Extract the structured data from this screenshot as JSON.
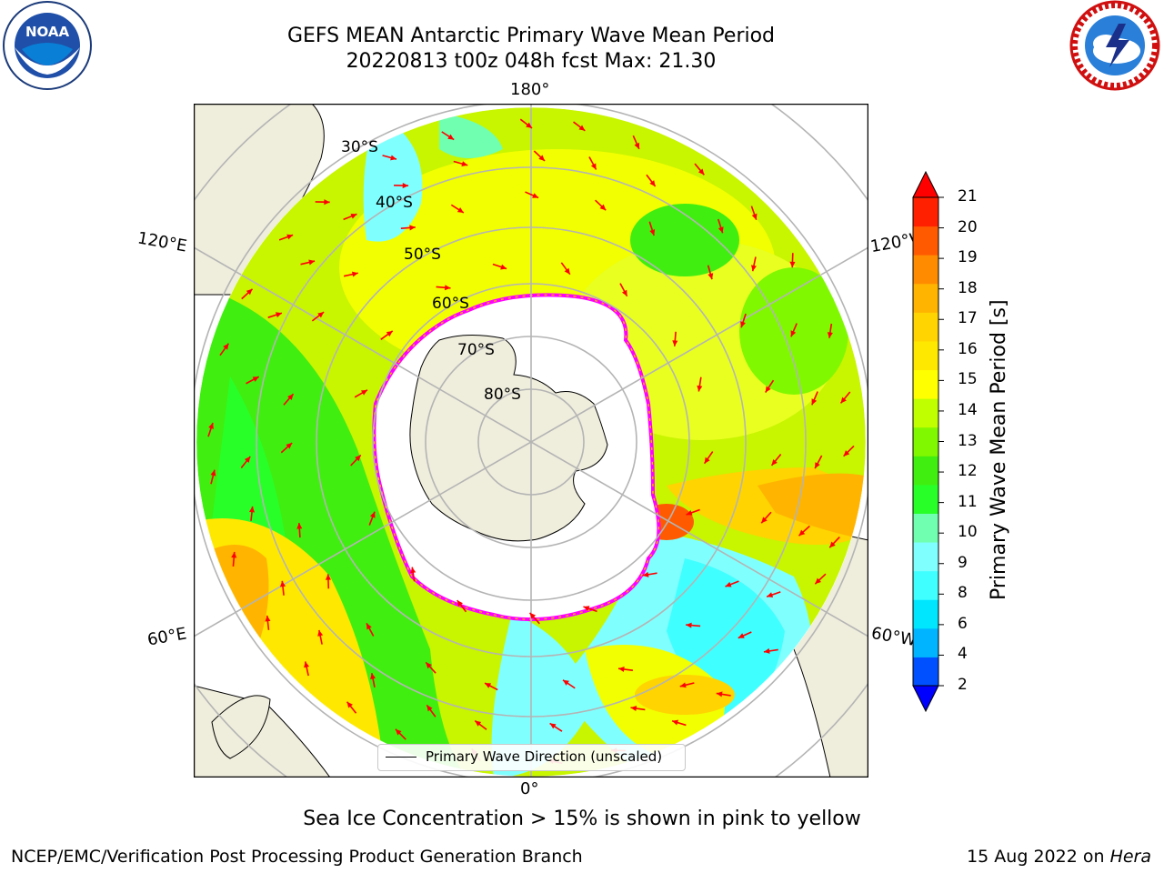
{
  "title": {
    "line1": "GEFS MEAN Antarctic Primary Wave Mean Period",
    "line2": "20220813 t00z 048h fcst   Max: 21.30"
  },
  "map": {
    "projection": "south-polar-stereographic",
    "longitude_labels": {
      "top": "180°",
      "bottom": "0°",
      "upper_left": "120°E",
      "lower_left": "60°E",
      "upper_right": "120°W",
      "lower_right": "60°W"
    },
    "latitude_labels": [
      "30°S",
      "40°S",
      "50°S",
      "60°S",
      "70°S",
      "80°S"
    ],
    "legend": {
      "text": "Primary Wave Direction (unscaled)"
    },
    "colors": {
      "land": "#efeddc",
      "ocean_outside": "#ffffff",
      "grid": "#b4b4b4",
      "arrow": "#ff0000",
      "sea_ice_edge": "#ff00ff"
    },
    "icons": [
      "noaa-logo-icon",
      "nws-logo-icon"
    ]
  },
  "colorbar": {
    "title": "Primary Wave Mean Period [s]",
    "ticks": [
      "2",
      "4",
      "6",
      "8",
      "9",
      "10",
      "11",
      "12",
      "13",
      "14",
      "15",
      "16",
      "17",
      "18",
      "19",
      "20",
      "21"
    ],
    "colors": [
      "#0050ff",
      "#00b4ff",
      "#00e6ff",
      "#40ffff",
      "#80ffff",
      "#70ffb0",
      "#28ff28",
      "#40ee10",
      "#80f800",
      "#c0ff00",
      "#ffff00",
      "#ffe800",
      "#ffd400",
      "#ffb400",
      "#ff8c00",
      "#ff5a00",
      "#ff2000"
    ],
    "under_color": "#0000ff",
    "over_color": "#ff0000"
  },
  "subtitle": "Sea Ice Concentration > 15% is shown in pink to yellow",
  "footer": {
    "left": "NCEP/EMC/Verification Post Processing Product Generation Branch",
    "right_date": "15 Aug 2022 on ",
    "right_host": "Hera"
  }
}
